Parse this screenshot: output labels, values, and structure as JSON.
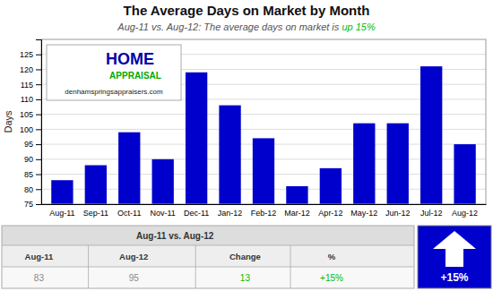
{
  "chart_data": {
    "type": "bar",
    "title": "The Average Days on Market by Month",
    "subtitle": [
      {
        "text": "Aug-11 vs. Aug-12: The average days on market is "
      },
      {
        "text": "up 15%",
        "color": "#00bb00"
      }
    ],
    "ylabel": "Days",
    "categories": [
      "Aug-11",
      "Sep-11",
      "Oct-11",
      "Nov-11",
      "Dec-11",
      "Jan-12",
      "Feb-12",
      "Mar-12",
      "Apr-12",
      "May-12",
      "Jun-12",
      "Jul-12",
      "Aug-12"
    ],
    "values": [
      83,
      88,
      99,
      90,
      119,
      108,
      97,
      81,
      87,
      102,
      102,
      121,
      95
    ],
    "color": "#0000cc",
    "ylim": [
      75,
      130
    ],
    "yticks": [
      75,
      80,
      85,
      90,
      95,
      100,
      105,
      110,
      115,
      120,
      125
    ],
    "grid": true,
    "annotations": [
      {
        "text": "HOME",
        "color": "#0000aa"
      },
      {
        "text": "APPRAISAL",
        "color": "#00aa00"
      },
      {
        "text": "denhamspringsappraisers.com"
      },
      {
        "text": "+15%",
        "color": "#ffffff",
        "background": "#0000cc"
      }
    ],
    "table": {
      "header": "Aug-11 vs. Aug-12",
      "columns": [
        "Aug-11",
        "Aug-12",
        "Change",
        "%"
      ],
      "values": [
        "83",
        "95",
        "13",
        "+15%"
      ],
      "colors": [
        "#888888",
        "#888888",
        "#00bb00",
        "#00bb00"
      ]
    }
  }
}
